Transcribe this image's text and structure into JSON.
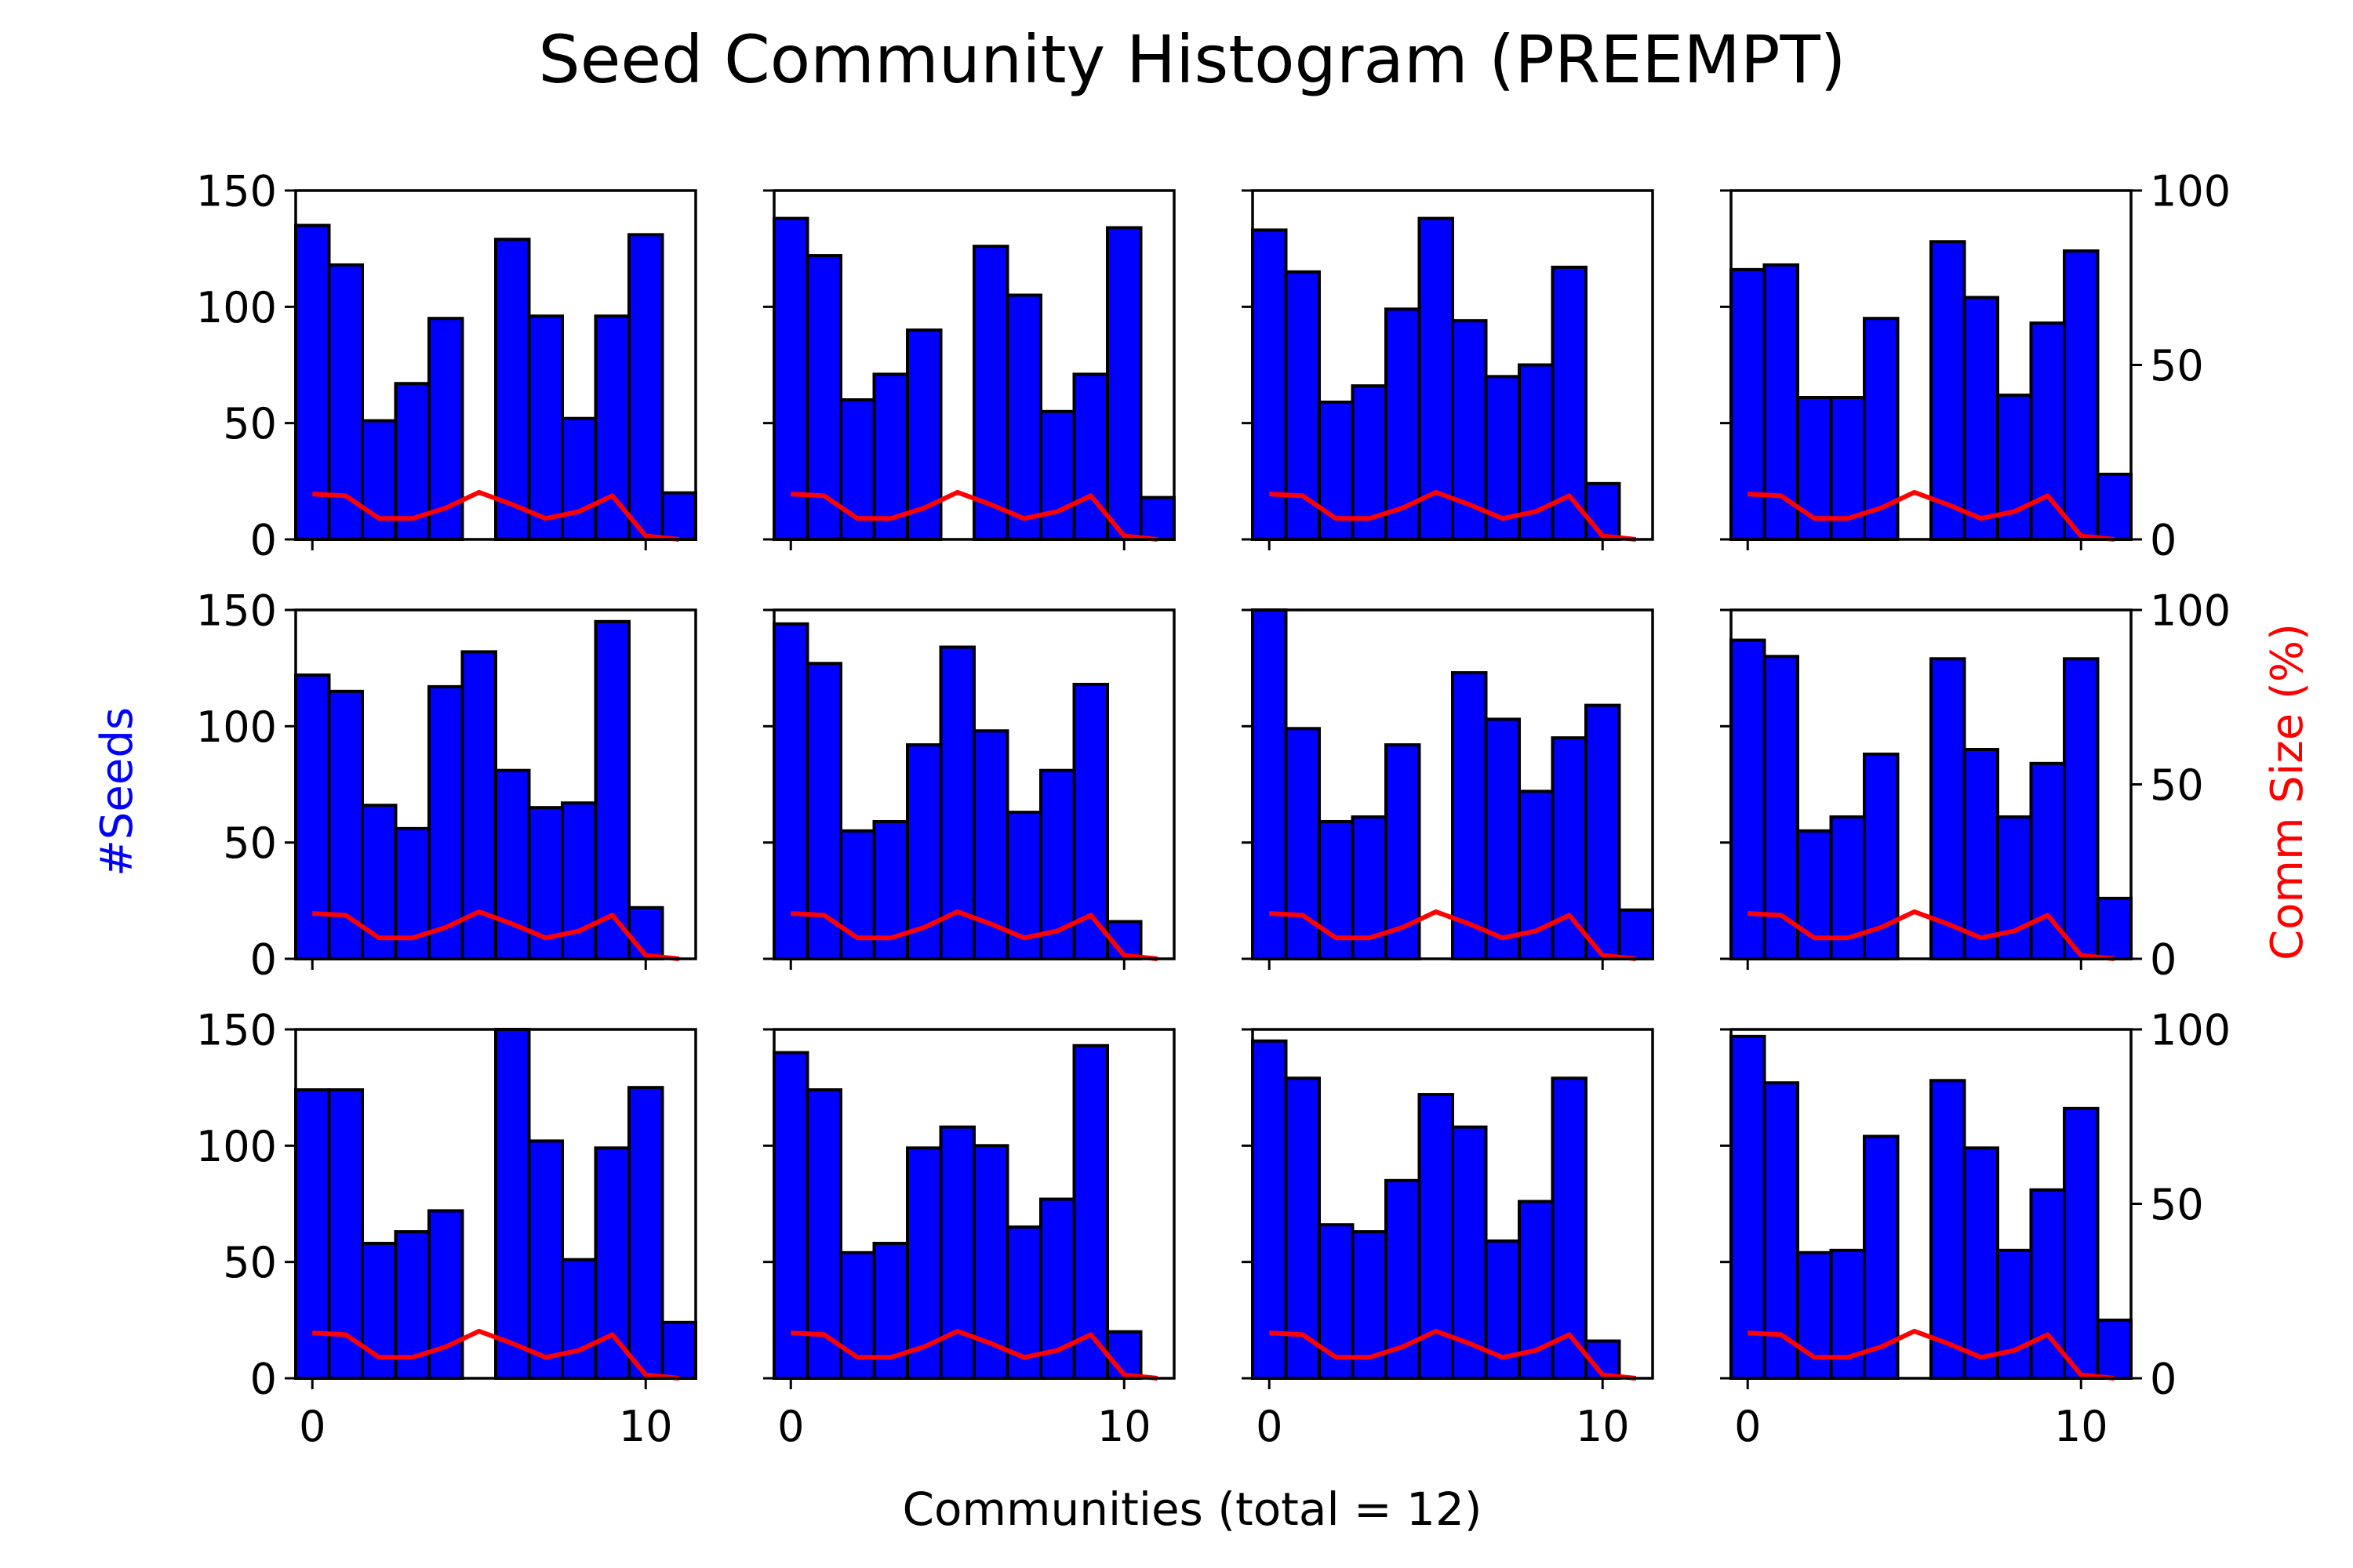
{
  "title": "Seed Community Histogram (PREEMPT)",
  "xlabel": "Communities (total = 12)",
  "ylabel_left": "#Seeds",
  "ylabel_right": "Comm Size (%)",
  "colors": {
    "bar_fill": "#0000ff",
    "bar_edge": "#000000",
    "line": "#ff0000",
    "ylabel_left": "#0000ff",
    "ylabel_right": "#ff0000",
    "text": "#000000"
  },
  "chart_data": {
    "type": "bar",
    "layout": {
      "rows": 3,
      "cols": 4,
      "shared_x": true,
      "shared_y": true
    },
    "x": [
      0,
      1,
      2,
      3,
      4,
      5,
      6,
      7,
      8,
      9,
      10,
      11
    ],
    "xlim": [
      -0.5,
      11.5
    ],
    "xticks": [
      0,
      10
    ],
    "ylim": [
      0,
      150
    ],
    "yticks": [
      0,
      50,
      100,
      150
    ],
    "y2lim": [
      0,
      100
    ],
    "y2ticks": [
      0,
      50,
      100
    ],
    "comm_size_pct": [
      13,
      12.5,
      6,
      6,
      9,
      13.5,
      10,
      6,
      8,
      12.5,
      1,
      0
    ],
    "panels": [
      {
        "values": [
          135,
          118,
          51,
          67,
          95,
          0,
          129,
          96,
          52,
          96,
          131,
          20
        ]
      },
      {
        "values": [
          138,
          122,
          60,
          71,
          90,
          0,
          126,
          105,
          55,
          71,
          134,
          18
        ]
      },
      {
        "values": [
          133,
          115,
          59,
          66,
          99,
          138,
          94,
          70,
          75,
          117,
          24,
          0
        ]
      },
      {
        "values": [
          116,
          118,
          61,
          61,
          95,
          0,
          128,
          104,
          62,
          93,
          124,
          28
        ]
      },
      {
        "values": [
          122,
          115,
          66,
          56,
          117,
          132,
          81,
          65,
          67,
          145,
          22,
          0
        ]
      },
      {
        "values": [
          144,
          127,
          55,
          59,
          92,
          134,
          98,
          63,
          81,
          118,
          16,
          0
        ]
      },
      {
        "values": [
          150,
          99,
          59,
          61,
          92,
          0,
          123,
          103,
          72,
          95,
          109,
          21
        ]
      },
      {
        "values": [
          137,
          130,
          55,
          61,
          88,
          0,
          129,
          90,
          61,
          84,
          129,
          26
        ]
      },
      {
        "values": [
          124,
          124,
          58,
          63,
          72,
          0,
          150,
          102,
          51,
          99,
          125,
          24
        ]
      },
      {
        "values": [
          140,
          124,
          54,
          58,
          99,
          108,
          100,
          65,
          77,
          143,
          20,
          0
        ]
      },
      {
        "values": [
          145,
          129,
          66,
          63,
          85,
          122,
          108,
          59,
          76,
          129,
          16,
          0
        ]
      },
      {
        "values": [
          147,
          127,
          54,
          55,
          104,
          0,
          128,
          99,
          55,
          81,
          116,
          25
        ]
      }
    ]
  }
}
